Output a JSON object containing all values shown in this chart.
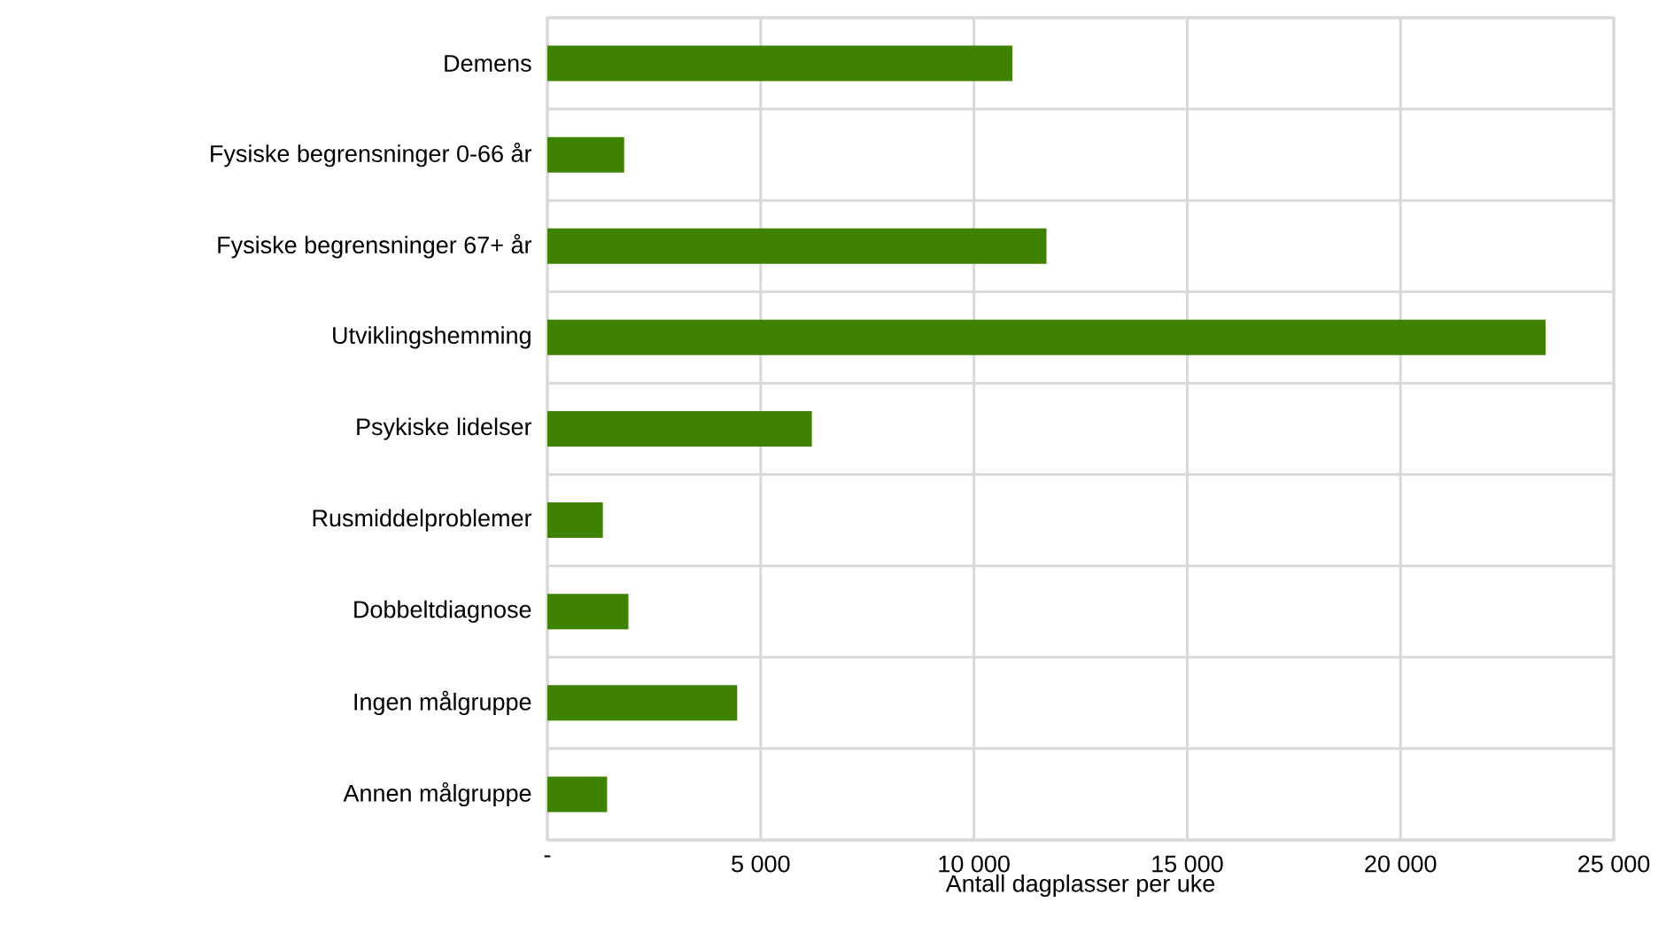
{
  "chart_data": {
    "type": "bar",
    "orientation": "horizontal",
    "xlabel": "Antall dagplasser per uke",
    "categories": [
      "Demens",
      "Fysiske begrensninger 0-66 år",
      "Fysiske begrensninger 67+ år",
      "Utviklingshemming",
      "Psykiske lidelser",
      "Rusmiddelproblemer",
      "Dobbeltdiagnose",
      "Ingen målgruppe",
      "Annen målgruppe"
    ],
    "values": [
      10900,
      1800,
      11700,
      23400,
      6200,
      1300,
      1900,
      4450,
      1400
    ],
    "color": "#3f8200",
    "xlim": [
      0,
      25000
    ],
    "xticks": [
      {
        "value": 0,
        "label": "-"
      },
      {
        "value": 5000,
        "label": "5 000"
      },
      {
        "value": 10000,
        "label": "10 000"
      },
      {
        "value": 15000,
        "label": "15 000"
      },
      {
        "value": 20000,
        "label": "20 000"
      },
      {
        "value": 25000,
        "label": "25 000"
      }
    ],
    "grid": true
  }
}
